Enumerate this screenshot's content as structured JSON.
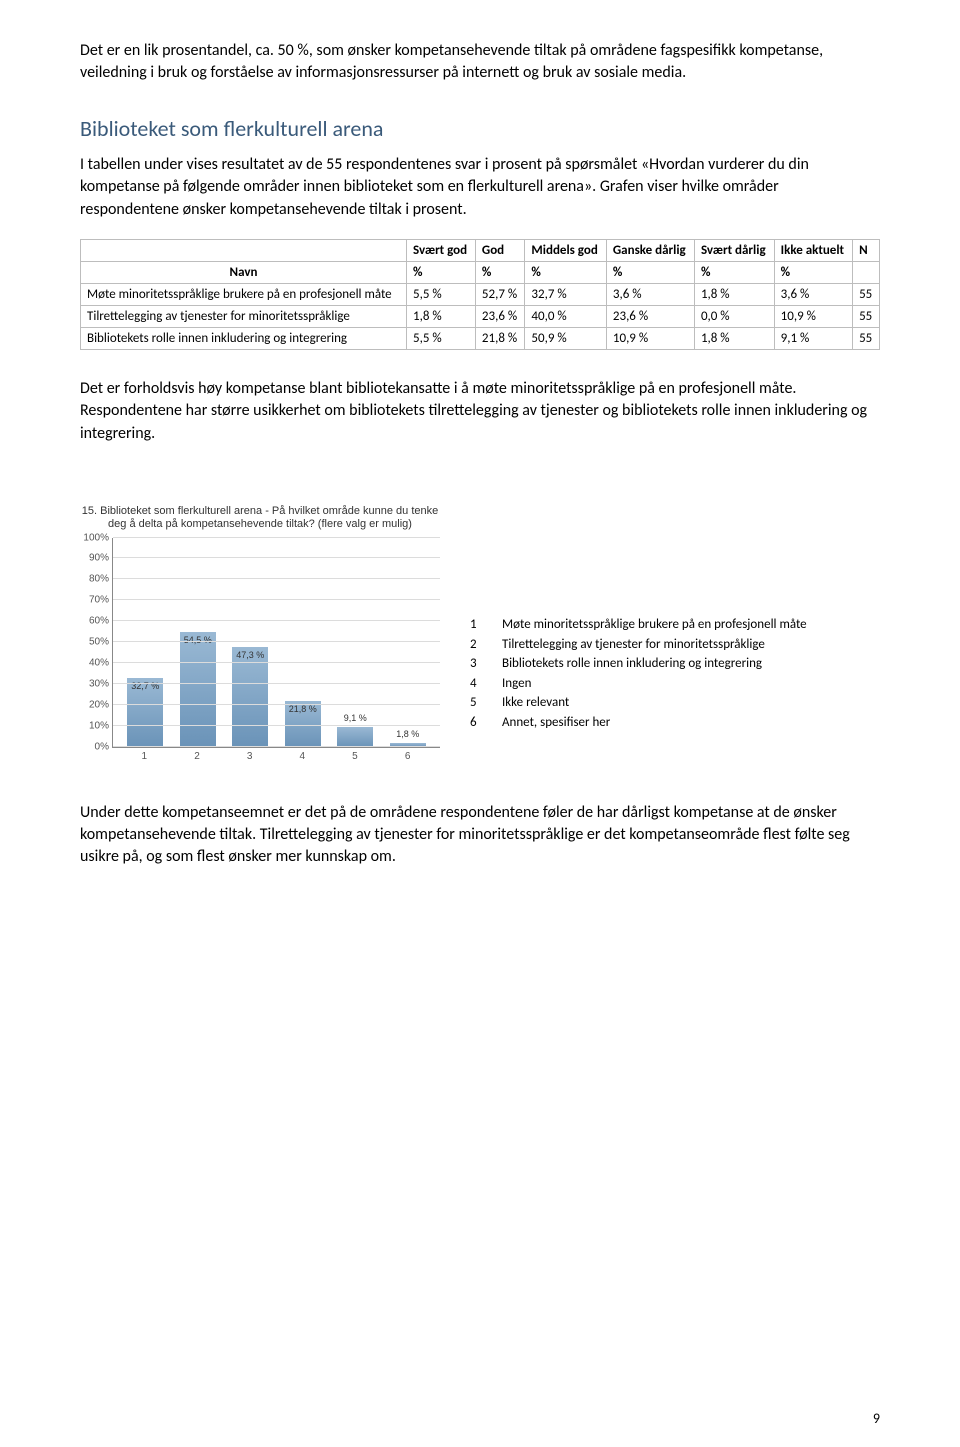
{
  "intro_para": "Det er en lik prosentandel, ca. 50 %, som ønsker kompetansehevende tiltak på områdene fagspesifikk kompetanse, veiledning i bruk og forståelse av informasjonsressurser på internett og bruk av sosiale media.",
  "section_heading": "Biblioteket som flerkulturell arena",
  "section_para": "I tabellen under vises resultatet av de 55 respondentenes svar i prosent på spørsmålet «Hvordan vurderer du din kompetanse på følgende områder innen biblioteket som en flerkulturell arena». Grafen viser hvilke områder respondentene ønsker kompetansehevende tiltak i prosent.",
  "table": {
    "columns": [
      "Svært god",
      "God",
      "Middels god",
      "Ganske dårlig",
      "Svært dårlig",
      "Ikke aktuelt",
      "N"
    ],
    "navn_label": "Navn",
    "pct_label": "%",
    "rows": [
      {
        "label": "Møte minoritetsspråklige brukere på en profesjonell måte",
        "cells": [
          "5,5 %",
          "52,7 %",
          "32,7 %",
          "3,6 %",
          "1,8 %",
          "3,6 %",
          "55"
        ]
      },
      {
        "label": "Tilrettelegging av tjenester for minoritetsspråklige",
        "cells": [
          "1,8 %",
          "23,6 %",
          "40,0 %",
          "23,6 %",
          "0,0 %",
          "10,9 %",
          "55"
        ]
      },
      {
        "label": "Bibliotekets rolle innen inkludering og integrering",
        "cells": [
          "5,5 %",
          "21,8 %",
          "50,9 %",
          "10,9 %",
          "1,8 %",
          "9,1 %",
          "55"
        ]
      }
    ]
  },
  "middle_para": "Det er forholdsvis høy kompetanse blant bibliotekansatte i å møte minoritetsspråklige på en profesjonell måte. Respondentene har større usikkerhet om bibliotekets tilrettelegging av tjenester og bibliotekets rolle innen inkludering og integrering.",
  "chart": {
    "title": "15. Biblioteket som flerkulturell arena - På hvilket område kunne du tenke deg å delta på kompetansehevende tiltak? (flere valg er mulig)",
    "ymax": 100,
    "ytick_step": 10,
    "categories": [
      "1",
      "2",
      "3",
      "4",
      "5",
      "6"
    ],
    "values": [
      32.7,
      54.5,
      47.3,
      21.8,
      9.1,
      1.8
    ],
    "value_labels": [
      "32,7 %",
      "54,5 %",
      "47,3 %",
      "21,8 %",
      "9,1 %",
      "1,8 %"
    ],
    "bar_color_top": "#9ab9d4",
    "bar_color_bottom": "#6a93b8",
    "grid_color": "#dcdcdc"
  },
  "legend": [
    {
      "num": "1",
      "text": "Møte minoritetsspråklige brukere på en profesjonell måte"
    },
    {
      "num": "2",
      "text": "Tilrettelegging av tjenester for minoritetsspråklige"
    },
    {
      "num": "3",
      "text": "Bibliotekets rolle innen inkludering og integrering"
    },
    {
      "num": "4",
      "text": "Ingen"
    },
    {
      "num": "5",
      "text": "Ikke relevant"
    },
    {
      "num": "6",
      "text": "Annet, spesifiser her"
    }
  ],
  "closing_para": "Under dette kompetanseemnet er det på de områdene respondentene føler de har dårligst kompetanse at de ønsker kompetansehevende tiltak. Tilrettelegging av tjenester for minoritetsspråklige er det kompetanseområde flest følte seg usikre på, og som flest ønsker mer kunnskap om.",
  "page_number": "9"
}
